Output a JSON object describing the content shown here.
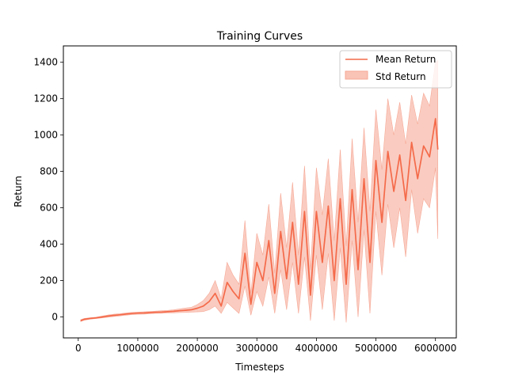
{
  "chart_data": {
    "type": "line",
    "title": "Training Curves",
    "xlabel": "Timesteps",
    "ylabel": "Return",
    "xlim": [
      -250000,
      6350000
    ],
    "ylim": [
      -115,
      1490
    ],
    "xticks": [
      0,
      1000000,
      2000000,
      3000000,
      4000000,
      5000000,
      6000000
    ],
    "xtick_labels": [
      "0",
      "1000000",
      "2000000",
      "3000000",
      "4000000",
      "5000000",
      "6000000"
    ],
    "yticks": [
      0,
      200,
      400,
      600,
      800,
      1000,
      1200,
      1400
    ],
    "ytick_labels": [
      "0",
      "200",
      "400",
      "600",
      "800",
      "1000",
      "1200",
      "1400"
    ],
    "grid": false,
    "legend_position": "top-right",
    "colors": {
      "line": "#f46a4a",
      "band": "#f9c3b6",
      "band_edge": "#f6a896"
    },
    "series": [
      {
        "name": "Mean Return",
        "kind": "line",
        "x": [
          40000,
          100000,
          200000,
          300000,
          400000,
          500000,
          600000,
          700000,
          800000,
          900000,
          1000000,
          1100000,
          1200000,
          1300000,
          1400000,
          1500000,
          1600000,
          1700000,
          1800000,
          1900000,
          2000000,
          2100000,
          2200000,
          2300000,
          2400000,
          2500000,
          2600000,
          2700000,
          2800000,
          2900000,
          3000000,
          3100000,
          3200000,
          3300000,
          3400000,
          3500000,
          3600000,
          3700000,
          3800000,
          3900000,
          4000000,
          4100000,
          4200000,
          4300000,
          4400000,
          4500000,
          4600000,
          4700000,
          4800000,
          4900000,
          5000000,
          5100000,
          5200000,
          5300000,
          5400000,
          5500000,
          5600000,
          5700000,
          5800000,
          5900000,
          6000000,
          6040000
        ],
        "y": [
          -20,
          -13,
          -8,
          -5,
          0,
          5,
          9,
          12,
          16,
          19,
          21,
          22,
          24,
          26,
          27,
          29,
          31,
          34,
          37,
          40,
          48,
          60,
          85,
          130,
          60,
          190,
          140,
          100,
          350,
          70,
          300,
          200,
          420,
          130,
          470,
          210,
          520,
          180,
          580,
          120,
          580,
          300,
          610,
          200,
          650,
          180,
          700,
          260,
          760,
          300,
          860,
          520,
          910,
          690,
          890,
          640,
          960,
          760,
          940,
          880,
          1090,
          920
        ]
      },
      {
        "name": "Std Return",
        "kind": "band",
        "x": [
          40000,
          100000,
          200000,
          300000,
          400000,
          500000,
          600000,
          700000,
          800000,
          900000,
          1000000,
          1100000,
          1200000,
          1300000,
          1400000,
          1500000,
          1600000,
          1700000,
          1800000,
          1900000,
          2000000,
          2100000,
          2200000,
          2300000,
          2400000,
          2500000,
          2600000,
          2700000,
          2800000,
          2900000,
          3000000,
          3100000,
          3200000,
          3300000,
          3400000,
          3500000,
          3600000,
          3700000,
          3800000,
          3900000,
          4000000,
          4100000,
          4200000,
          4300000,
          4400000,
          4500000,
          4600000,
          4700000,
          4800000,
          4900000,
          5000000,
          5100000,
          5200000,
          5300000,
          5400000,
          5500000,
          5600000,
          5700000,
          5800000,
          5900000,
          6000000,
          6040000
        ],
        "lower": [
          -25,
          -18,
          -12,
          -9,
          -5,
          -1,
          3,
          6,
          10,
          13,
          15,
          16,
          18,
          20,
          20,
          22,
          23,
          24,
          25,
          27,
          28,
          30,
          40,
          60,
          20,
          80,
          50,
          20,
          170,
          10,
          140,
          60,
          220,
          20,
          260,
          40,
          300,
          20,
          330,
          -20,
          340,
          40,
          350,
          -20,
          380,
          -30,
          420,
          0,
          480,
          20,
          580,
          230,
          620,
          380,
          600,
          330,
          700,
          460,
          650,
          600,
          820,
          430
        ],
        "upper": [
          -15,
          -8,
          -4,
          -1,
          5,
          11,
          15,
          18,
          22,
          25,
          27,
          28,
          30,
          32,
          34,
          36,
          39,
          44,
          49,
          53,
          68,
          90,
          130,
          200,
          100,
          300,
          230,
          180,
          530,
          130,
          460,
          340,
          620,
          240,
          680,
          380,
          740,
          340,
          830,
          260,
          820,
          560,
          870,
          420,
          920,
          390,
          980,
          520,
          1040,
          580,
          1140,
          810,
          1200,
          1000,
          1180,
          950,
          1220,
          1060,
          1230,
          1160,
          1400,
          1410
        ]
      }
    ]
  }
}
